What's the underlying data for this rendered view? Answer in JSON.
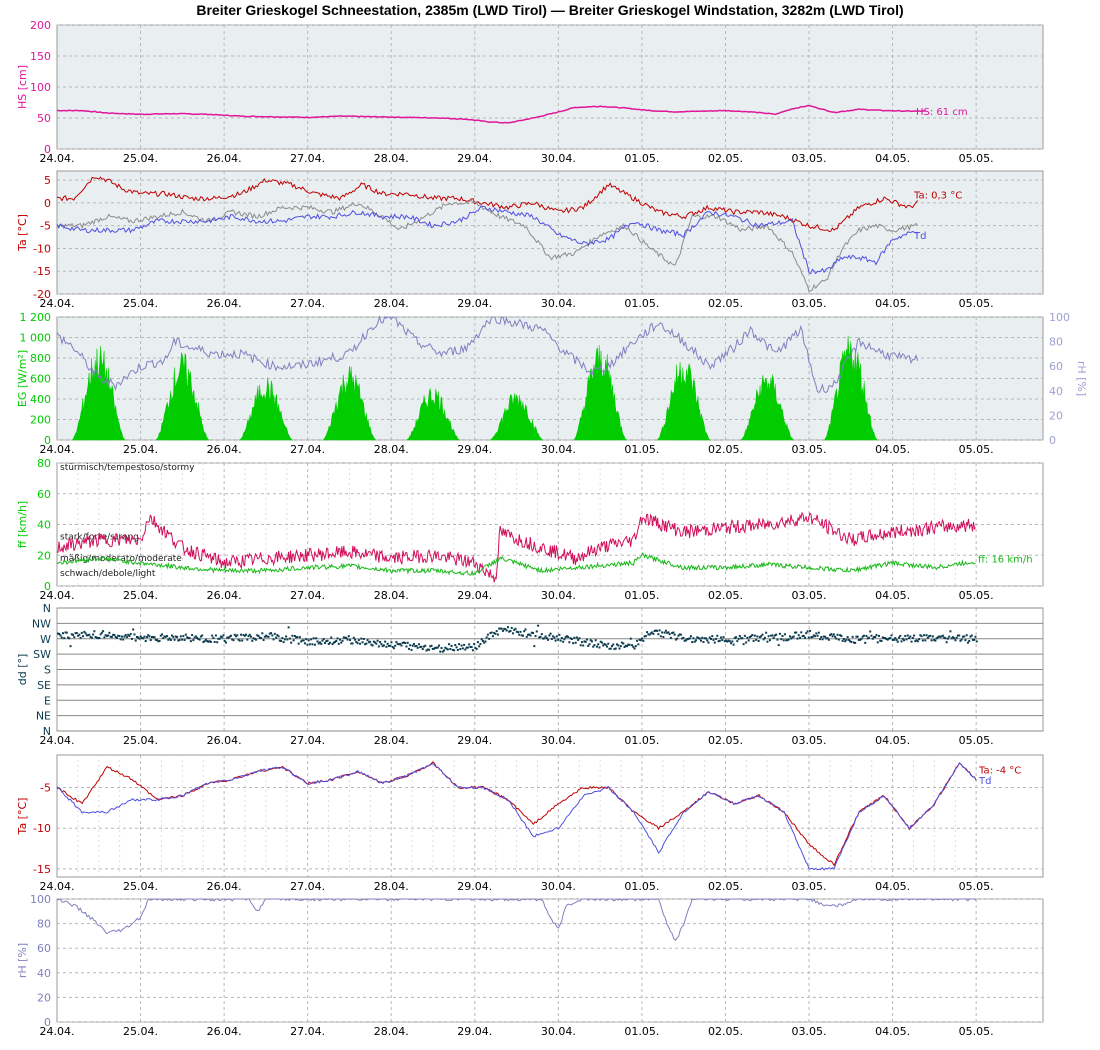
{
  "title": "Breiter Grieskogel Schneestation, 2385m (LWD Tirol) — Breiter Grieskogel Windstation, 3282m (LWD Tirol)",
  "colors": {
    "hs": "#e0179a",
    "ta": "#c00000",
    "td": "#5050e0",
    "ta_grey": "#8c8c8c",
    "eg": "#00cc00",
    "rh": "#8080c0",
    "ff": "#d0105c",
    "ff_green": "#18b818",
    "dd": "#0b3b4f",
    "plot_bg_grey": "#e9eef1",
    "grid": "#b8b8b8"
  },
  "chart_data": [
    {
      "type": "line",
      "id": "hs",
      "title": "",
      "ylabel": "HS [cm]",
      "ylim": [
        0,
        200
      ],
      "yticks": [
        "0",
        "50",
        "100",
        "150",
        "200"
      ],
      "xticks": [
        "24.04.",
        "25.04.",
        "26.04.",
        "27.04.",
        "28.04.",
        "29.04.",
        "30.04.",
        "01.05.",
        "02.05.",
        "03.05.",
        "04.05.",
        "05.05."
      ],
      "grid": true,
      "series": [
        {
          "name": "HS",
          "color_key": "hs",
          "x": [
            0,
            0.3,
            0.6,
            1,
            1.4,
            1.8,
            2.2,
            2.6,
            3,
            3.4,
            3.8,
            4.2,
            4.6,
            4.9,
            5.15,
            5.4,
            5.7,
            5.95,
            6.2,
            6.5,
            6.8,
            7.1,
            7.4,
            7.7,
            8,
            8.3,
            8.6,
            8.8,
            9,
            9.3,
            9.6,
            9.9,
            10.2,
            10.4
          ],
          "values": [
            62,
            62,
            58,
            56,
            57,
            56,
            53,
            52,
            51,
            53,
            52,
            51,
            50,
            48,
            44,
            42,
            50,
            58,
            67,
            69,
            66,
            62,
            60,
            61,
            62,
            60,
            56,
            65,
            70,
            59,
            64,
            62,
            61,
            61
          ]
        }
      ],
      "annotations": [
        "HS: 61 cm"
      ]
    },
    {
      "type": "line",
      "id": "ta-upper",
      "title": "",
      "ylabel": "Ta [°C]",
      "ylim": [
        -20,
        7
      ],
      "yticks": [
        "5",
        "0",
        "-5",
        "-10",
        "-15",
        "-20"
      ],
      "xticks": [
        "24.04.",
        "25.04.",
        "26.04.",
        "27.04.",
        "28.04.",
        "29.04.",
        "30.04.",
        "01.05.",
        "02.05.",
        "03.05.",
        "04.05.",
        "05.05."
      ],
      "grid": true,
      "series": [
        {
          "name": "Ta",
          "color_key": "ta",
          "x": [
            0,
            0.2,
            0.45,
            0.6,
            0.8,
            1,
            1.3,
            1.6,
            1.9,
            2.2,
            2.5,
            2.8,
            3.1,
            3.4,
            3.65,
            3.9,
            4.2,
            4.5,
            4.8,
            5.1,
            5.4,
            5.7,
            6,
            6.3,
            6.6,
            6.9,
            7.2,
            7.5,
            7.8,
            8.1,
            8.4,
            8.7,
            9,
            9.3,
            9.6,
            9.9,
            10.2,
            10.3
          ],
          "values": [
            1,
            1,
            6,
            5,
            3,
            2,
            2,
            1,
            1,
            2,
            5,
            4,
            2,
            1,
            4,
            2,
            2,
            1,
            1,
            0,
            -1,
            0,
            -2,
            -1,
            4,
            1,
            -2,
            -3,
            -1,
            -2,
            -2,
            -3,
            -5,
            -6,
            -1,
            1,
            -1,
            0
          ]
        },
        {
          "name": "",
          "color_key": "ta_grey",
          "x": [
            0,
            0.3,
            0.6,
            0.9,
            1.2,
            1.5,
            1.8,
            2.1,
            2.4,
            2.7,
            3.0,
            3.3,
            3.6,
            3.9,
            4.1,
            4.4,
            4.7,
            5.0,
            5.3,
            5.6,
            5.9,
            6.2,
            6.5,
            6.8,
            7.1,
            7.4,
            7.6,
            7.9,
            8.2,
            8.5,
            8.8,
            9.0,
            9.2,
            9.4,
            9.6,
            9.8,
            10.0,
            10.3
          ],
          "values": [
            -5,
            -5,
            -3,
            -4,
            -3,
            -2,
            -4,
            -2,
            -3,
            -1,
            -1,
            -2,
            0,
            -3,
            -6,
            -3,
            0,
            0,
            -3,
            -5,
            -12,
            -11,
            -7,
            -5,
            -10,
            -14,
            -3,
            -3,
            -6,
            -5,
            -11,
            -19,
            -17,
            -10,
            -6,
            -5,
            -6,
            -5
          ]
        },
        {
          "name": "Td",
          "color_key": "td",
          "x": [
            0,
            0.3,
            0.6,
            0.9,
            1.2,
            1.5,
            1.8,
            2.1,
            2.4,
            2.7,
            3.0,
            3.3,
            3.6,
            3.9,
            4.2,
            4.5,
            4.8,
            5.1,
            5.4,
            5.7,
            6.0,
            6.3,
            6.6,
            6.9,
            7.2,
            7.5,
            7.8,
            8.1,
            8.4,
            8.8,
            9.0,
            9.2,
            9.4,
            9.6,
            9.8,
            10.0,
            10.3
          ],
          "values": [
            -5,
            -6,
            -6,
            -6,
            -4,
            -4,
            -4,
            -3,
            -4,
            -4,
            -3,
            -3,
            -2,
            -3,
            -3,
            -5,
            -4,
            -1,
            -2,
            -3,
            -7,
            -9,
            -8,
            -4,
            -6,
            -7,
            -2,
            -3,
            -5,
            -4,
            -15,
            -15,
            -12,
            -12,
            -13,
            -8,
            -6
          ]
        }
      ],
      "annotations": [
        "Ta: 0,3 °C",
        "Td"
      ]
    },
    {
      "type": "area",
      "id": "eg-rh",
      "title": "",
      "ylabel": "EG [W/m²]",
      "ylim": [
        0,
        1200
      ],
      "yticks": [
        "0",
        "200",
        "400",
        "600",
        "800",
        "1 000",
        "1 200"
      ],
      "y2label": "rH [%]",
      "y2lim": [
        0,
        100
      ],
      "y2ticks": [
        "0",
        "20",
        "40",
        "60",
        "80",
        "100"
      ],
      "xticks": [
        "24.04.",
        "25.04.",
        "26.04.",
        "27.04.",
        "28.04.",
        "29.04.",
        "30.04.",
        "01.05.",
        "02.05.",
        "03.05.",
        "04.05.",
        "05.05."
      ],
      "grid": true,
      "series": [
        {
          "name": "EG",
          "color_key": "eg",
          "days": [
            0.5,
            1.5,
            2.5,
            3.5,
            4.5,
            5.5,
            6.5,
            7.5,
            8.5,
            9.5
          ],
          "peaks": [
            950,
            870,
            640,
            750,
            550,
            500,
            970,
            860,
            700,
            1050
          ]
        },
        {
          "name": "rH",
          "color_key": "rh",
          "x": [
            0,
            0.2,
            0.5,
            0.7,
            1.0,
            1.3,
            1.4,
            1.6,
            1.9,
            2.2,
            2.6,
            2.9,
            3.2,
            3.5,
            3.8,
            4.0,
            4.3,
            4.6,
            4.9,
            5.2,
            5.5,
            5.8,
            6.1,
            6.4,
            6.6,
            6.9,
            7.2,
            7.5,
            7.8,
            8.1,
            8.3,
            8.6,
            8.9,
            9.1,
            9.3,
            9.6,
            9.9,
            10.2,
            10.3
          ],
          "values": [
            85,
            75,
            50,
            45,
            60,
            65,
            80,
            75,
            70,
            70,
            60,
            60,
            65,
            70,
            95,
            100,
            80,
            70,
            75,
            100,
            95,
            90,
            70,
            55,
            60,
            80,
            95,
            80,
            60,
            75,
            90,
            70,
            90,
            40,
            45,
            80,
            70,
            65,
            65
          ]
        }
      ],
      "annotations": []
    },
    {
      "type": "line",
      "id": "ff",
      "title": "",
      "ylabel": "ff [km/h]",
      "ylim": [
        0,
        80
      ],
      "yticks": [
        "0",
        "20",
        "40",
        "60",
        "80"
      ],
      "xticks": [
        "24.04.",
        "25.04.",
        "26.04.",
        "27.04.",
        "28.04.",
        "29.04.",
        "30.04.",
        "01.05.",
        "02.05.",
        "03.05.",
        "04.05.",
        "05.05."
      ],
      "grid": true,
      "zones": [
        "stürmisch/tempestoso/stormy",
        "stark/forte/strong",
        "mäßig/moderato/moderate",
        "schwach/debole/light"
      ],
      "series": [
        {
          "name": "",
          "color_key": "ff",
          "x": [
            0,
            0.5,
            1.0,
            1.1,
            1.5,
            2.0,
            2.5,
            3.0,
            3.5,
            4.0,
            4.5,
            5.0,
            5.25,
            5.3,
            5.8,
            6.2,
            6.5,
            6.9,
            7.0,
            7.5,
            8.0,
            8.5,
            9.0,
            9.5,
            10.0,
            10.5,
            11.0
          ],
          "values": [
            25,
            30,
            30,
            45,
            25,
            15,
            18,
            20,
            22,
            18,
            20,
            15,
            5,
            35,
            25,
            18,
            25,
            30,
            45,
            35,
            38,
            40,
            45,
            30,
            35,
            38,
            40
          ]
        },
        {
          "name": "",
          "color_key": "ff_green",
          "x": [
            0,
            0.5,
            1.0,
            1.5,
            2.0,
            2.5,
            3.0,
            3.5,
            4.0,
            4.5,
            5.0,
            5.3,
            5.8,
            6.2,
            6.9,
            7.0,
            7.5,
            8.0,
            8.5,
            9.0,
            9.5,
            10.0,
            10.5,
            11.0
          ],
          "values": [
            15,
            18,
            15,
            12,
            10,
            10,
            12,
            13,
            10,
            10,
            8,
            18,
            10,
            12,
            15,
            20,
            12,
            12,
            14,
            12,
            10,
            15,
            12,
            16
          ]
        }
      ],
      "annotations": [
        "ff: 16 km/h"
      ]
    },
    {
      "type": "scatter",
      "id": "dd",
      "title": "",
      "ylabel": "dd [°]",
      "ylim": [
        0,
        360
      ],
      "yticks": [
        "N",
        "NW",
        "W",
        "SW",
        "S",
        "SE",
        "E",
        "NE",
        "N"
      ],
      "xticks": [
        "24.04.",
        "25.04.",
        "26.04.",
        "27.04.",
        "28.04.",
        "29.04.",
        "30.04.",
        "01.05.",
        "02.05.",
        "03.05.",
        "04.05.",
        "05.05."
      ],
      "grid": true,
      "series": [
        {
          "name": "",
          "color_key": "dd",
          "x": [
            0,
            0.5,
            1.0,
            1.5,
            2.0,
            2.5,
            3.0,
            3.5,
            4.0,
            4.5,
            5.0,
            5.3,
            5.6,
            6.0,
            6.5,
            6.9,
            7.1,
            7.5,
            8.0,
            8.5,
            9.0,
            9.5,
            10.0,
            10.5,
            11.0
          ],
          "values": [
            280,
            285,
            275,
            275,
            272,
            280,
            265,
            270,
            255,
            245,
            250,
            300,
            290,
            275,
            255,
            250,
            295,
            275,
            270,
            275,
            285,
            270,
            275,
            272,
            272
          ]
        }
      ],
      "annotations": []
    },
    {
      "type": "line",
      "id": "ta-lower",
      "title": "",
      "ylabel": "Ta [°C]",
      "ylim": [
        -16,
        -1
      ],
      "yticks": [
        "-5",
        "-10",
        "-15"
      ],
      "xticks": [
        "24.04.",
        "25.04.",
        "26.04.",
        "27.04.",
        "28.04.",
        "29.04.",
        "30.04.",
        "01.05.",
        "02.05.",
        "03.05.",
        "04.05.",
        "05.05."
      ],
      "grid": true,
      "series": [
        {
          "name": "Ta",
          "color_key": "ta",
          "x": [
            0,
            0.3,
            0.6,
            0.9,
            1.2,
            1.5,
            1.8,
            2.1,
            2.4,
            2.7,
            3.0,
            3.3,
            3.6,
            3.9,
            4.2,
            4.5,
            4.8,
            5.1,
            5.4,
            5.7,
            6.0,
            6.3,
            6.6,
            6.9,
            7.2,
            7.5,
            7.8,
            8.1,
            8.4,
            8.7,
            9.0,
            9.3,
            9.6,
            9.9,
            10.2,
            10.5,
            10.8,
            11.0
          ],
          "values": [
            -5,
            -7,
            -2.5,
            -4,
            -6.5,
            -6,
            -4.5,
            -4,
            -3,
            -2.5,
            -4.5,
            -4,
            -3,
            -4.5,
            -3.5,
            -2,
            -5,
            -5,
            -6.5,
            -9.5,
            -7,
            -5,
            -5,
            -8,
            -10,
            -8,
            -5.5,
            -7,
            -6,
            -8,
            -12,
            -14.5,
            -8,
            -6,
            -10,
            -7,
            -2,
            -4
          ]
        },
        {
          "name": "Td",
          "color_key": "td",
          "x": [
            0,
            0.3,
            0.6,
            0.9,
            1.2,
            1.5,
            1.8,
            2.1,
            2.4,
            2.7,
            3.0,
            3.3,
            3.6,
            3.9,
            4.2,
            4.5,
            4.8,
            5.1,
            5.4,
            5.7,
            6.0,
            6.3,
            6.6,
            6.9,
            7.2,
            7.5,
            7.8,
            8.1,
            8.4,
            8.7,
            9.0,
            9.3,
            9.6,
            9.9,
            10.2,
            10.5,
            10.8,
            11.0
          ],
          "values": [
            -5,
            -8,
            -8,
            -6.5,
            -6.5,
            -6,
            -4.5,
            -4,
            -3,
            -2.5,
            -4.5,
            -4,
            -3,
            -4.5,
            -3.5,
            -2,
            -5,
            -5,
            -6.5,
            -11,
            -10,
            -6,
            -5,
            -8,
            -13,
            -8,
            -5.5,
            -7,
            -6,
            -8,
            -15,
            -15,
            -8,
            -6,
            -10,
            -7,
            -2,
            -4
          ]
        }
      ],
      "annotations": [
        "Ta: -4 °C",
        "Td"
      ]
    },
    {
      "type": "line",
      "id": "rh-lower",
      "title": "",
      "ylabel": "rH [%]",
      "ylim": [
        0,
        100
      ],
      "yticks": [
        "0",
        "20",
        "40",
        "60",
        "80",
        "100"
      ],
      "xticks": [
        "24.04.",
        "25.04.",
        "26.04.",
        "27.04.",
        "28.04.",
        "29.04.",
        "30.04.",
        "01.05.",
        "02.05.",
        "03.05.",
        "04.05.",
        "05.05."
      ],
      "grid": true,
      "series": [
        {
          "name": "rH",
          "color_key": "rh",
          "x": [
            0,
            0.2,
            0.4,
            0.6,
            0.8,
            1.0,
            1.1,
            2.0,
            2.3,
            2.4,
            2.5,
            3.0,
            4.0,
            4.5,
            5.0,
            5.5,
            5.8,
            5.9,
            6.0,
            6.1,
            6.3,
            6.5,
            7.0,
            7.2,
            7.3,
            7.4,
            7.5,
            7.6,
            7.7,
            8.0,
            9.0,
            9.2,
            9.4,
            9.6,
            10.0,
            11.0
          ],
          "values": [
            100,
            95,
            85,
            72,
            75,
            85,
            100,
            100,
            100,
            90,
            100,
            100,
            100,
            100,
            100,
            100,
            100,
            85,
            75,
            95,
            100,
            100,
            100,
            100,
            80,
            65,
            80,
            100,
            100,
            100,
            100,
            95,
            95,
            100,
            100,
            100
          ]
        }
      ],
      "annotations": []
    }
  ]
}
